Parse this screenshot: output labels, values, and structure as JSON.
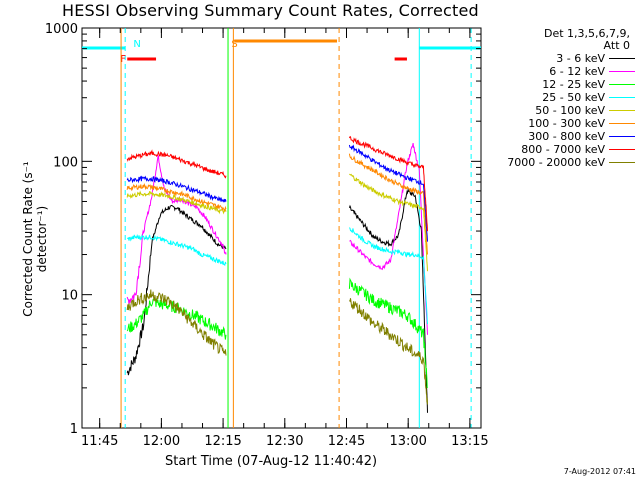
{
  "chart_data": {
    "type": "line",
    "title": "HESSI Observing Summary Count Rates, Corrected",
    "xlabel": "Start Time (07-Aug-12 11:40:42)",
    "ylabel": "Corrected Count Rate (s⁻¹ detector⁻¹)",
    "yscale": "log",
    "ylim": [
      1,
      1000
    ],
    "xlim_minutes": [
      0,
      97
    ],
    "x_ticks": [
      "11:45",
      "12:00",
      "12:15",
      "12:30",
      "12:45",
      "13:00",
      "13:15"
    ],
    "x_tick_minutes": [
      4.3,
      19.3,
      34.3,
      49.3,
      64.3,
      79.3,
      94.3
    ],
    "y_ticks": [
      "1",
      "10",
      "100",
      "1000"
    ],
    "y_tick_values": [
      1,
      10,
      100,
      1000
    ],
    "legend": {
      "header_line1": "Det 1,3,5,6,7,9,",
      "header_line2": "Att 0",
      "position": "right"
    },
    "series": [
      {
        "name": "3 - 6 keV",
        "color": "#000000",
        "segments": [
          [
            [
              11,
              2.6
            ],
            [
              13,
              3.4
            ],
            [
              15,
              6
            ],
            [
              17,
              25
            ],
            [
              19,
              40
            ],
            [
              21,
              45
            ],
            [
              23,
              45
            ],
            [
              25,
              40
            ],
            [
              27,
              36
            ],
            [
              29,
              33
            ],
            [
              31,
              28
            ],
            [
              33,
              24
            ],
            [
              35,
              22
            ]
          ],
          [
            [
              65,
              45
            ],
            [
              67,
              38
            ],
            [
              69,
              32
            ],
            [
              71,
              27
            ],
            [
              73,
              25
            ],
            [
              75,
              24
            ],
            [
              77,
              28
            ],
            [
              79,
              60
            ],
            [
              81,
              55
            ],
            [
              82.5,
              30
            ],
            [
              84,
              1.3
            ]
          ]
        ]
      },
      {
        "name": "6 - 12 keV",
        "color": "#ff00ff",
        "segments": [
          [
            [
              11,
              9
            ],
            [
              13,
              10
            ],
            [
              15,
              30
            ],
            [
              17,
              55
            ],
            [
              18.5,
              110
            ],
            [
              20,
              62
            ],
            [
              22,
              50
            ],
            [
              24,
              52
            ],
            [
              26,
              48
            ],
            [
              28,
              45
            ],
            [
              30,
              38
            ],
            [
              32,
              30
            ],
            [
              34,
              24
            ],
            [
              35,
              20
            ]
          ],
          [
            [
              65,
              25
            ],
            [
              67,
              22
            ],
            [
              69,
              19
            ],
            [
              71,
              17
            ],
            [
              73,
              16
            ],
            [
              75,
              18
            ],
            [
              77,
              40
            ],
            [
              79,
              95
            ],
            [
              80.5,
              135
            ],
            [
              82,
              85
            ],
            [
              84,
              5
            ]
          ]
        ]
      },
      {
        "name": "12 - 25 keV",
        "color": "#00ff00",
        "segments": [
          [
            [
              11,
              5.5
            ],
            [
              13,
              6
            ],
            [
              15,
              7
            ],
            [
              17,
              9
            ],
            [
              19,
              8.5
            ],
            [
              21,
              8.3
            ],
            [
              23,
              8
            ],
            [
              25,
              7.5
            ],
            [
              27,
              7
            ],
            [
              29,
              6.5
            ],
            [
              31,
              6
            ],
            [
              33,
              5.5
            ],
            [
              35,
              5
            ]
          ],
          [
            [
              65,
              12
            ],
            [
              67,
              11
            ],
            [
              69,
              10
            ],
            [
              71,
              9
            ],
            [
              73,
              8.5
            ],
            [
              75,
              8
            ],
            [
              77,
              7.5
            ],
            [
              79,
              7
            ],
            [
              81,
              6
            ],
            [
              83,
              5
            ],
            [
              84,
              2
            ]
          ]
        ]
      },
      {
        "name": "25 - 50 keV",
        "color": "#00ffff",
        "segments": [
          [
            [
              11,
              26
            ],
            [
              13,
              27
            ],
            [
              15,
              27
            ],
            [
              17,
              27
            ],
            [
              19,
              26
            ],
            [
              21,
              25
            ],
            [
              23,
              24
            ],
            [
              25,
              23
            ],
            [
              27,
              22
            ],
            [
              29,
              20
            ],
            [
              31,
              19
            ],
            [
              33,
              18
            ],
            [
              35,
              17
            ]
          ],
          [
            [
              65,
              32
            ],
            [
              67,
              28
            ],
            [
              69,
              25
            ],
            [
              71,
              23
            ],
            [
              73,
              22
            ],
            [
              75,
              21
            ],
            [
              77,
              21
            ],
            [
              79,
              20
            ],
            [
              81,
              20
            ],
            [
              83,
              19
            ],
            [
              84,
              6
            ]
          ]
        ]
      },
      {
        "name": "50 - 100 keV",
        "color": "#cccc00",
        "segments": [
          [
            [
              11,
              55
            ],
            [
              13,
              56
            ],
            [
              15,
              57
            ],
            [
              17,
              57
            ],
            [
              19,
              56
            ],
            [
              21,
              55
            ],
            [
              23,
              53
            ],
            [
              25,
              51
            ],
            [
              27,
              49
            ],
            [
              29,
              47
            ],
            [
              31,
              45
            ],
            [
              33,
              43
            ],
            [
              35,
              42
            ]
          ],
          [
            [
              65,
              80
            ],
            [
              67,
              72
            ],
            [
              69,
              65
            ],
            [
              71,
              60
            ],
            [
              73,
              56
            ],
            [
              75,
              53
            ],
            [
              77,
              50
            ],
            [
              79,
              48
            ],
            [
              81,
              46
            ],
            [
              83,
              45
            ],
            [
              84,
              15
            ]
          ]
        ]
      },
      {
        "name": "100 - 300 keV",
        "color": "#ff8800",
        "segments": [
          [
            [
              11,
              63
            ],
            [
              13,
              64
            ],
            [
              15,
              65
            ],
            [
              17,
              64
            ],
            [
              19,
              62
            ],
            [
              21,
              60
            ],
            [
              23,
              58
            ],
            [
              25,
              56
            ],
            [
              27,
              53
            ],
            [
              29,
              50
            ],
            [
              31,
              48
            ],
            [
              33,
              46
            ],
            [
              35,
              44
            ]
          ],
          [
            [
              65,
              110
            ],
            [
              67,
              100
            ],
            [
              69,
              92
            ],
            [
              71,
              85
            ],
            [
              73,
              78
            ],
            [
              75,
              72
            ],
            [
              77,
              67
            ],
            [
              79,
              63
            ],
            [
              81,
              60
            ],
            [
              83,
              57
            ],
            [
              84,
              20
            ]
          ]
        ]
      },
      {
        "name": "300 - 800 keV",
        "color": "#0000ff",
        "segments": [
          [
            [
              11,
              72
            ],
            [
              13,
              73
            ],
            [
              15,
              74
            ],
            [
              17,
              74
            ],
            [
              19,
              72
            ],
            [
              21,
              70
            ],
            [
              23,
              67
            ],
            [
              25,
              64
            ],
            [
              27,
              61
            ],
            [
              29,
              58
            ],
            [
              31,
              55
            ],
            [
              33,
              52
            ],
            [
              35,
              50
            ]
          ],
          [
            [
              65,
              130
            ],
            [
              67,
              120
            ],
            [
              69,
              110
            ],
            [
              71,
              100
            ],
            [
              73,
              92
            ],
            [
              75,
              85
            ],
            [
              77,
              80
            ],
            [
              79,
              75
            ],
            [
              81,
              72
            ],
            [
              83,
              68
            ],
            [
              84,
              25
            ]
          ]
        ]
      },
      {
        "name": "800 - 7000 keV",
        "color": "#ff0000",
        "segments": [
          [
            [
              11,
              105
            ],
            [
              13,
              108
            ],
            [
              15,
              112
            ],
            [
              17,
              115
            ],
            [
              19,
              113
            ],
            [
              21,
              110
            ],
            [
              23,
              105
            ],
            [
              25,
              100
            ],
            [
              27,
              95
            ],
            [
              29,
              90
            ],
            [
              31,
              85
            ],
            [
              33,
              82
            ],
            [
              35,
              78
            ]
          ],
          [
            [
              65,
              150
            ],
            [
              67,
              140
            ],
            [
              69,
              132
            ],
            [
              71,
              124
            ],
            [
              73,
              116
            ],
            [
              75,
              110
            ],
            [
              77,
              104
            ],
            [
              79,
              98
            ],
            [
              81,
              93
            ],
            [
              83,
              90
            ],
            [
              84,
              30
            ]
          ]
        ]
      },
      {
        "name": "7000 - 20000 keV",
        "color": "#808000",
        "segments": [
          [
            [
              11,
              8
            ],
            [
              13,
              9
            ],
            [
              15,
              9.5
            ],
            [
              17,
              10
            ],
            [
              19,
              9.5
            ],
            [
              21,
              9
            ],
            [
              23,
              8
            ],
            [
              25,
              7
            ],
            [
              27,
              6
            ],
            [
              29,
              5.2
            ],
            [
              31,
              4.5
            ],
            [
              33,
              4
            ],
            [
              35,
              3.5
            ]
          ],
          [
            [
              65,
              9
            ],
            [
              67,
              8
            ],
            [
              69,
              7
            ],
            [
              71,
              6
            ],
            [
              73,
              5.5
            ],
            [
              75,
              5
            ],
            [
              77,
              4.5
            ],
            [
              79,
              4
            ],
            [
              81,
              3.6
            ],
            [
              83,
              3.3
            ],
            [
              84,
              1.5
            ]
          ]
        ]
      }
    ],
    "flags": [
      {
        "label": "N",
        "color": "#00ffff",
        "text_minute": 12.5,
        "bars": [
          [
            0,
            10.5
          ],
          [
            82,
            97
          ]
        ],
        "vlines_dashed": [
          10.5,
          94.6
        ],
        "vlines_solid": [
          82
        ]
      },
      {
        "label": "F",
        "color": "#ff0000",
        "text_minute": 9.3,
        "bars": [
          [
            11,
            18
          ],
          [
            76,
            79
          ]
        ]
      },
      {
        "label": "S",
        "color": "#ff8800",
        "text_minute": 36.3,
        "bars": [
          [
            37,
            62
          ]
        ],
        "vlines_dashed": [
          62.5
        ],
        "vlines_solid": [
          9.5,
          36.8
        ]
      }
    ],
    "vlines_solid_green": [
      35.5
    ]
  },
  "timestamp": "7-Aug-2012 07:41"
}
